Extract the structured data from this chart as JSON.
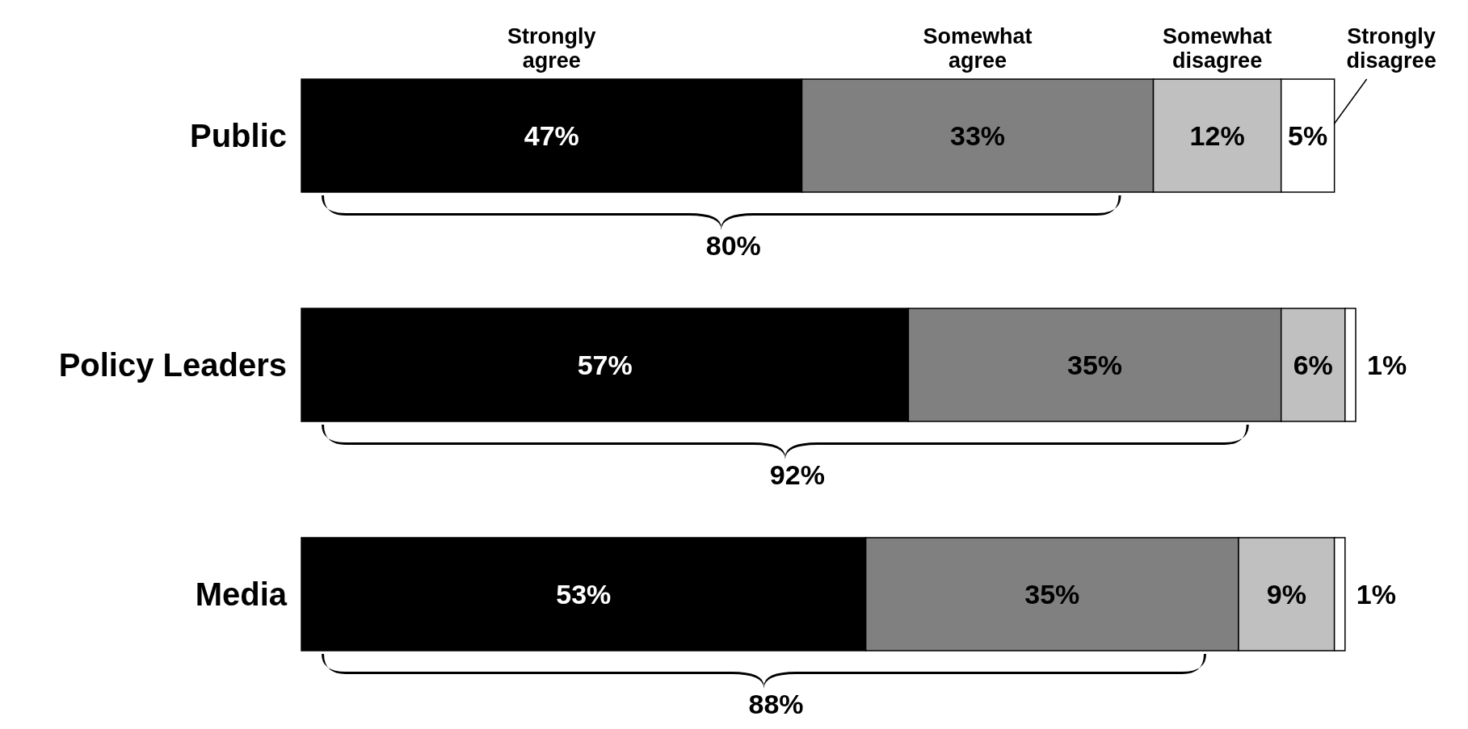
{
  "chart_data": {
    "type": "bar",
    "orientation": "horizontal",
    "stacked": true,
    "legend": "top",
    "categories": [
      "Public",
      "Policy Leaders",
      "Media"
    ],
    "series": [
      {
        "name": "Strongly agree",
        "color": "#000000",
        "values": [
          47,
          57,
          53
        ],
        "value_labels": [
          "47%",
          "57%",
          "53%"
        ]
      },
      {
        "name": "Somewhat agree",
        "color": "#808080",
        "values": [
          33,
          35,
          35
        ],
        "value_labels": [
          "33%",
          "35%",
          "35%"
        ]
      },
      {
        "name": "Somewhat disagree",
        "color": "#c0c0c0",
        "values": [
          12,
          6,
          9
        ],
        "value_labels": [
          "12%",
          "6%",
          "9%"
        ]
      },
      {
        "name": "Strongly disagree",
        "color": "#ffffff",
        "values": [
          5,
          1,
          1
        ],
        "value_labels": [
          "5%",
          "1%",
          "1%"
        ]
      }
    ],
    "annotations": [
      "80%",
      "92%",
      "88%"
    ]
  }
}
